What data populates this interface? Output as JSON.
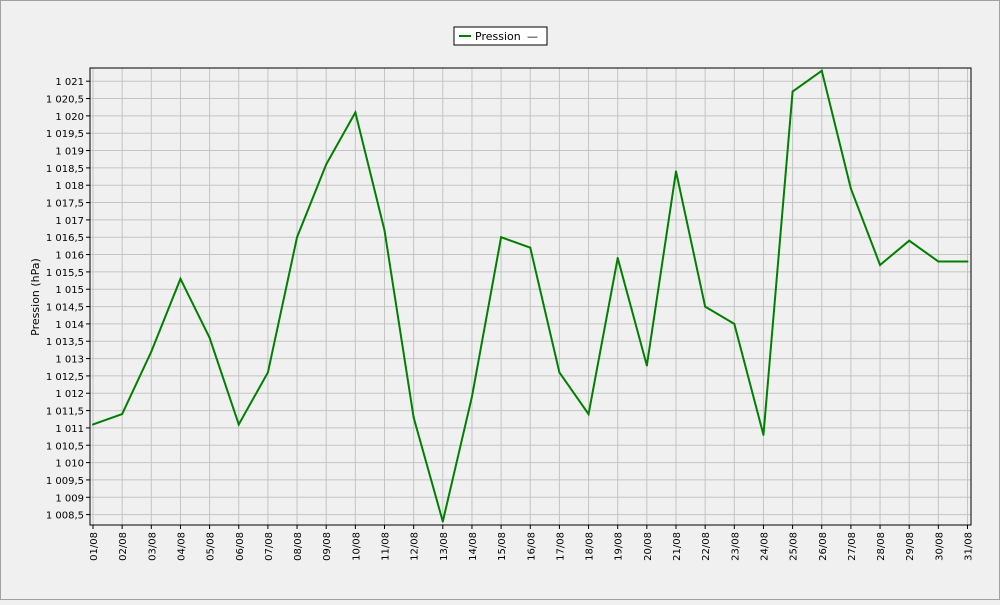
{
  "chart_data": {
    "type": "line",
    "title": "",
    "xlabel": "",
    "ylabel": "Pression (hPa)",
    "ylim": [
      1008.2,
      1021.3
    ],
    "grid": true,
    "legend": {
      "placement": "top-center",
      "entries": [
        {
          "name": "Pression",
          "suffix": "—"
        }
      ]
    },
    "categories": [
      "01/08",
      "02/08",
      "03/08",
      "04/08",
      "05/08",
      "06/08",
      "07/08",
      "08/08",
      "09/08",
      "10/08",
      "11/08",
      "12/08",
      "13/08",
      "14/08",
      "15/08",
      "16/08",
      "17/08",
      "18/08",
      "19/08",
      "20/08",
      "21/08",
      "22/08",
      "23/08",
      "24/08",
      "25/08",
      "26/08",
      "27/08",
      "28/08",
      "29/08",
      "30/08",
      "31/08"
    ],
    "y_ticks": [
      1008.5,
      1009,
      1009.5,
      1010,
      1010.5,
      1011,
      1011.5,
      1012,
      1012.5,
      1013,
      1013.5,
      1014,
      1014.5,
      1015,
      1015.5,
      1016,
      1016.5,
      1017,
      1017.5,
      1018,
      1018.5,
      1019,
      1019.5,
      1020,
      1020.5,
      1021
    ],
    "y_tick_labels": [
      "1 008,5",
      "1 009",
      "1 009,5",
      "1 010",
      "1 010,5",
      "1 011",
      "1 011,5",
      "1 012",
      "1 012,5",
      "1 013",
      "1 013,5",
      "1 014",
      "1 014,5",
      "1 015",
      "1 015,5",
      "1 016",
      "1 016,5",
      "1 017",
      "1 017,5",
      "1 018",
      "1 018,5",
      "1 019",
      "1 019,5",
      "1 020",
      "1 020,5",
      "1 021"
    ],
    "series": [
      {
        "name": "Pression",
        "color": "#008000",
        "values": [
          1011.1,
          1011.4,
          1013.2,
          1015.3,
          1013.6,
          1011.1,
          1012.6,
          1016.5,
          1018.6,
          1020.1,
          1016.7,
          1011.3,
          1008.3,
          1011.9,
          1016.5,
          1016.2,
          1012.6,
          1011.4,
          1015.9,
          1012.8,
          1018.4,
          1014.5,
          1014.0,
          1010.8,
          1020.7,
          1021.3,
          1017.9,
          1015.7,
          1016.4,
          1015.8,
          1015.8
        ]
      }
    ]
  }
}
